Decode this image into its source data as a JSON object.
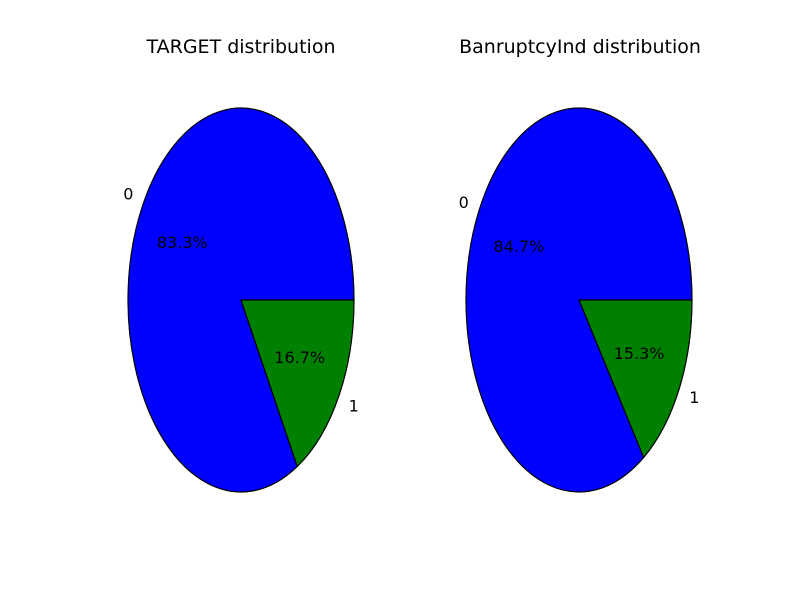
{
  "chart_data": [
    {
      "type": "pie",
      "title": "TARGET distribution",
      "categories": [
        "0",
        "1"
      ],
      "values": [
        83.3,
        16.7
      ],
      "value_labels": [
        "83.3%",
        "16.7%"
      ],
      "colors": [
        "#0000ff",
        "#008000"
      ]
    },
    {
      "type": "pie",
      "title": "BanruptcyInd distribution",
      "categories": [
        "0",
        "1"
      ],
      "values": [
        84.7,
        15.3
      ],
      "value_labels": [
        "84.7%",
        "15.3%"
      ],
      "colors": [
        "#0000ff",
        "#008000"
      ]
    }
  ]
}
